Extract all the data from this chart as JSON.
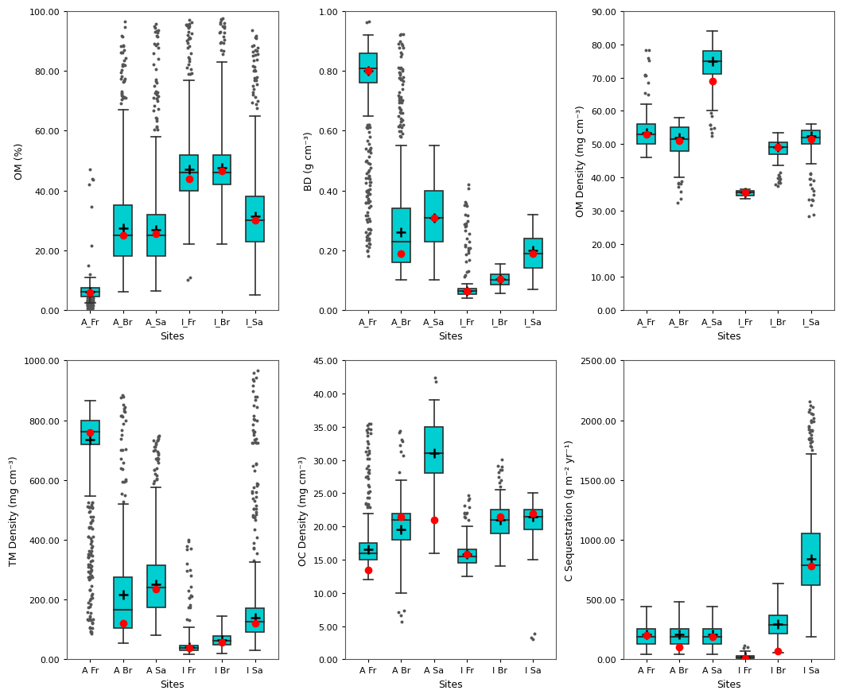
{
  "box_color": "#00CED1",
  "whisker_color": "#2F2F2F",
  "obs_color": "red",
  "outlier_color": "#555555",
  "background_color": "#ffffff",
  "subplots": [
    {
      "ylabel": "OM (%)",
      "xlabel": "Sites",
      "ylim": [
        0,
        100
      ],
      "yticks": [
        0.0,
        20.0,
        40.0,
        60.0,
        80.0,
        100.0
      ],
      "sites": [
        "A_Fr",
        "A_Br",
        "A_Sa",
        "I_Fr",
        "I_Br",
        "I_Sa"
      ],
      "boxes": [
        {
          "q1": 4.5,
          "median": 6.0,
          "q3": 7.5,
          "whislo": 2.5,
          "whishi": 11.0,
          "mean": 6.2,
          "obs": 5.8,
          "n_fliers_lo": 180,
          "flo_min": 0.5,
          "flo_max": 4.4,
          "n_fliers_hi": 8,
          "fhi_min": 12.0,
          "fhi_max": 49.0
        },
        {
          "q1": 18.0,
          "median": 25.0,
          "q3": 35.0,
          "whislo": 6.0,
          "whishi": 67.0,
          "mean": 27.5,
          "obs": 25.0,
          "n_fliers_lo": 0,
          "flo_min": 0,
          "flo_max": 0,
          "n_fliers_hi": 35,
          "fhi_min": 69.0,
          "fhi_max": 97.0
        },
        {
          "q1": 18.0,
          "median": 25.0,
          "q3": 32.0,
          "whislo": 6.5,
          "whishi": 58.0,
          "mean": 27.0,
          "obs": 25.5,
          "n_fliers_lo": 0,
          "flo_min": 0,
          "flo_max": 0,
          "n_fliers_hi": 40,
          "fhi_min": 60.0,
          "fhi_max": 97.0
        },
        {
          "q1": 40.0,
          "median": 46.0,
          "q3": 52.0,
          "whislo": 22.0,
          "whishi": 77.0,
          "mean": 47.0,
          "obs": 44.0,
          "n_fliers_lo": 2,
          "flo_min": 10.0,
          "flo_max": 12.0,
          "n_fliers_hi": 30,
          "fhi_min": 79.0,
          "fhi_max": 97.0
        },
        {
          "q1": 42.0,
          "median": 46.0,
          "q3": 52.0,
          "whislo": 22.0,
          "whishi": 83.0,
          "mean": 47.5,
          "obs": 46.5,
          "n_fliers_lo": 0,
          "flo_min": 0,
          "flo_max": 0,
          "n_fliers_hi": 20,
          "fhi_min": 85.0,
          "fhi_max": 98.0
        },
        {
          "q1": 23.0,
          "median": 30.0,
          "q3": 38.0,
          "whislo": 5.0,
          "whishi": 65.0,
          "mean": 31.5,
          "obs": 30.0,
          "n_fliers_lo": 0,
          "flo_min": 0,
          "flo_max": 0,
          "n_fliers_hi": 35,
          "fhi_min": 67.0,
          "fhi_max": 95.0
        }
      ]
    },
    {
      "ylabel": "BD (g cm⁻³)",
      "xlabel": "Sites",
      "ylim": [
        0,
        1.0
      ],
      "yticks": [
        0.0,
        0.2,
        0.4,
        0.6,
        0.8,
        1.0
      ],
      "sites": [
        "A_Fr",
        "A_Br",
        "A_Sa",
        "I_Fr",
        "I_Br",
        "I_Sa"
      ],
      "boxes": [
        {
          "q1": 0.76,
          "median": 0.81,
          "q3": 0.86,
          "whislo": 0.65,
          "whishi": 0.92,
          "mean": 0.8,
          "obs": 0.8,
          "n_fliers_lo": 80,
          "flo_min": 0.18,
          "flo_max": 0.62,
          "n_fliers_hi": 2,
          "fhi_min": 0.96,
          "fhi_max": 0.99
        },
        {
          "q1": 0.16,
          "median": 0.23,
          "q3": 0.34,
          "whislo": 0.1,
          "whishi": 0.55,
          "mean": 0.26,
          "obs": 0.19,
          "n_fliers_lo": 2,
          "flo_min": 0.19,
          "flo_max": 0.21,
          "n_fliers_hi": 60,
          "fhi_min": 0.57,
          "fhi_max": 0.93
        },
        {
          "q1": 0.23,
          "median": 0.31,
          "q3": 0.4,
          "whislo": 0.1,
          "whishi": 0.55,
          "mean": 0.31,
          "obs": 0.31,
          "n_fliers_lo": 0,
          "flo_min": 0,
          "flo_max": 0,
          "n_fliers_hi": 0,
          "fhi_min": 0,
          "fhi_max": 0
        },
        {
          "q1": 0.054,
          "median": 0.063,
          "q3": 0.072,
          "whislo": 0.04,
          "whishi": 0.088,
          "mean": 0.064,
          "obs": 0.064,
          "n_fliers_lo": 0,
          "flo_min": 0,
          "flo_max": 0,
          "n_fliers_hi": 30,
          "fhi_min": 0.1,
          "fhi_max": 0.43
        },
        {
          "q1": 0.085,
          "median": 0.1,
          "q3": 0.12,
          "whislo": 0.055,
          "whishi": 0.155,
          "mean": 0.105,
          "obs": 0.105,
          "n_fliers_lo": 0,
          "flo_min": 0,
          "flo_max": 0,
          "n_fliers_hi": 0,
          "fhi_min": 0,
          "fhi_max": 0
        },
        {
          "q1": 0.14,
          "median": 0.19,
          "q3": 0.24,
          "whislo": 0.07,
          "whishi": 0.32,
          "mean": 0.2,
          "obs": 0.19,
          "n_fliers_lo": 0,
          "flo_min": 0,
          "flo_max": 0,
          "n_fliers_hi": 0,
          "fhi_min": 0,
          "fhi_max": 0
        }
      ]
    },
    {
      "ylabel": "OM Density (mg cm⁻³)",
      "xlabel": "Sites",
      "ylim": [
        0,
        90
      ],
      "yticks": [
        0.0,
        10.0,
        20.0,
        30.0,
        40.0,
        50.0,
        60.0,
        70.0,
        80.0,
        90.0
      ],
      "sites": [
        "A_Fr",
        "A_Br",
        "A_Sa",
        "I_Fr",
        "I_Br",
        "I_Sa"
      ],
      "boxes": [
        {
          "q1": 50.0,
          "median": 53.0,
          "q3": 56.0,
          "whislo": 46.0,
          "whishi": 62.0,
          "mean": 53.5,
          "obs": 53.0,
          "n_fliers_lo": 0,
          "flo_min": 0,
          "flo_max": 0,
          "n_fliers_hi": 10,
          "fhi_min": 64.0,
          "fhi_max": 81.0
        },
        {
          "q1": 48.0,
          "median": 51.5,
          "q3": 55.0,
          "whislo": 40.0,
          "whishi": 58.0,
          "mean": 52.0,
          "obs": 51.0,
          "n_fliers_lo": 8,
          "flo_min": 31.0,
          "flo_max": 39.0,
          "n_fliers_hi": 0,
          "fhi_min": 0,
          "fhi_max": 0
        },
        {
          "q1": 71.0,
          "median": 75.0,
          "q3": 78.0,
          "whislo": 60.0,
          "whishi": 84.0,
          "mean": 75.0,
          "obs": 69.0,
          "n_fliers_lo": 8,
          "flo_min": 52.0,
          "flo_max": 59.5,
          "n_fliers_hi": 0,
          "fhi_min": 0,
          "fhi_max": 0
        },
        {
          "q1": 34.5,
          "median": 35.5,
          "q3": 36.0,
          "whislo": 33.5,
          "whishi": 36.5,
          "mean": 35.5,
          "obs": 35.5,
          "n_fliers_lo": 0,
          "flo_min": 0,
          "flo_max": 0,
          "n_fliers_hi": 0,
          "fhi_min": 0,
          "fhi_max": 0
        },
        {
          "q1": 47.0,
          "median": 49.0,
          "q3": 50.5,
          "whislo": 43.5,
          "whishi": 53.5,
          "mean": 49.0,
          "obs": 49.0,
          "n_fliers_lo": 12,
          "flo_min": 37.0,
          "flo_max": 43.0,
          "n_fliers_hi": 0,
          "fhi_min": 0,
          "fhi_max": 0
        },
        {
          "q1": 50.0,
          "median": 52.0,
          "q3": 54.0,
          "whislo": 44.0,
          "whishi": 56.0,
          "mean": 52.5,
          "obs": 51.5,
          "n_fliers_lo": 15,
          "flo_min": 28.0,
          "flo_max": 43.0,
          "n_fliers_hi": 0,
          "fhi_min": 0,
          "fhi_max": 0
        }
      ]
    },
    {
      "ylabel": "TM Density (mg cm⁻³)",
      "xlabel": "Sites",
      "ylim": [
        0,
        1000
      ],
      "yticks": [
        0.0,
        200.0,
        400.0,
        600.0,
        800.0,
        1000.0
      ],
      "sites": [
        "A Fr",
        "A Br",
        "A Sa",
        "I Fr",
        "I Br",
        "I Sa"
      ],
      "boxes": [
        {
          "q1": 720.0,
          "median": 762.0,
          "q3": 800.0,
          "whislo": 545.0,
          "whishi": 865.0,
          "mean": 735.0,
          "obs": 760.0,
          "n_fliers_lo": 90,
          "flo_min": 85.0,
          "flo_max": 540.0,
          "n_fliers_hi": 0,
          "fhi_min": 0,
          "fhi_max": 0
        },
        {
          "q1": 105.0,
          "median": 165.0,
          "q3": 275.0,
          "whislo": 55.0,
          "whishi": 520.0,
          "mean": 215.0,
          "obs": 120.0,
          "n_fliers_lo": 0,
          "flo_min": 0,
          "flo_max": 0,
          "n_fliers_hi": 30,
          "fhi_min": 525.0,
          "fhi_max": 900.0
        },
        {
          "q1": 175.0,
          "median": 240.0,
          "q3": 315.0,
          "whislo": 80.0,
          "whishi": 575.0,
          "mean": 250.0,
          "obs": 235.0,
          "n_fliers_lo": 0,
          "flo_min": 0,
          "flo_max": 0,
          "n_fliers_hi": 30,
          "fhi_min": 580.0,
          "fhi_max": 760.0
        },
        {
          "q1": 30.0,
          "median": 38.0,
          "q3": 46.0,
          "whislo": 18.0,
          "whishi": 108.0,
          "mean": 42.0,
          "obs": 37.0,
          "n_fliers_lo": 0,
          "flo_min": 0,
          "flo_max": 0,
          "n_fliers_hi": 20,
          "fhi_min": 115.0,
          "fhi_max": 400.0
        },
        {
          "q1": 48.0,
          "median": 62.0,
          "q3": 78.0,
          "whislo": 20.0,
          "whishi": 145.0,
          "mean": 65.0,
          "obs": 57.0,
          "n_fliers_lo": 0,
          "flo_min": 0,
          "flo_max": 0,
          "n_fliers_hi": 0,
          "fhi_min": 0,
          "fhi_max": 0
        },
        {
          "q1": 90.0,
          "median": 125.0,
          "q3": 170.0,
          "whislo": 30.0,
          "whishi": 325.0,
          "mean": 138.0,
          "obs": 120.0,
          "n_fliers_lo": 0,
          "flo_min": 0,
          "flo_max": 0,
          "n_fliers_hi": 60,
          "fhi_min": 330.0,
          "fhi_max": 970.0
        }
      ]
    },
    {
      "ylabel": "OC Density (mg cm⁻³)",
      "xlabel": "Sites",
      "ylim": [
        0,
        45
      ],
      "yticks": [
        0.0,
        5.0,
        10.0,
        15.0,
        20.0,
        25.0,
        30.0,
        35.0,
        40.0,
        45.0
      ],
      "sites": [
        "A Fr",
        "A Br",
        "A Sa",
        "I Fr",
        "I Br",
        "I Sa"
      ],
      "boxes": [
        {
          "q1": 15.0,
          "median": 16.0,
          "q3": 17.5,
          "whislo": 12.0,
          "whishi": 22.0,
          "mean": 16.5,
          "obs": 13.5,
          "n_fliers_lo": 0,
          "flo_min": 0,
          "flo_max": 0,
          "n_fliers_hi": 40,
          "fhi_min": 22.5,
          "fhi_max": 35.5
        },
        {
          "q1": 18.0,
          "median": 21.0,
          "q3": 22.0,
          "whislo": 10.0,
          "whishi": 27.0,
          "mean": 19.5,
          "obs": 21.5,
          "n_fliers_lo": 4,
          "flo_min": 5.5,
          "flo_max": 7.5,
          "n_fliers_hi": 8,
          "fhi_min": 28.0,
          "fhi_max": 34.5
        },
        {
          "q1": 28.0,
          "median": 31.0,
          "q3": 35.0,
          "whislo": 16.0,
          "whishi": 39.0,
          "mean": 31.0,
          "obs": 21.0,
          "n_fliers_lo": 0,
          "flo_min": 0,
          "flo_max": 0,
          "n_fliers_hi": 2,
          "fhi_min": 41.0,
          "fhi_max": 42.5
        },
        {
          "q1": 14.5,
          "median": 15.5,
          "q3": 16.5,
          "whislo": 12.5,
          "whishi": 20.0,
          "mean": 15.8,
          "obs": 15.8,
          "n_fliers_lo": 0,
          "flo_min": 0,
          "flo_max": 0,
          "n_fliers_hi": 12,
          "fhi_min": 21.0,
          "fhi_max": 25.5
        },
        {
          "q1": 19.0,
          "median": 21.0,
          "q3": 22.5,
          "whislo": 14.0,
          "whishi": 25.5,
          "mean": 21.0,
          "obs": 21.5,
          "n_fliers_lo": 0,
          "flo_min": 0,
          "flo_max": 0,
          "n_fliers_hi": 10,
          "fhi_min": 26.0,
          "fhi_max": 30.5
        },
        {
          "q1": 19.5,
          "median": 21.5,
          "q3": 22.5,
          "whislo": 15.0,
          "whishi": 25.0,
          "mean": 21.5,
          "obs": 22.0,
          "n_fliers_lo": 3,
          "flo_min": 3.0,
          "flo_max": 5.0,
          "n_fliers_hi": 0,
          "fhi_min": 0,
          "fhi_max": 0
        }
      ]
    },
    {
      "ylabel": "C Sequestration (g m⁻² yr⁻¹)",
      "xlabel": "Sites",
      "ylim": [
        0,
        2500
      ],
      "yticks": [
        0.0,
        500.0,
        1000.0,
        1500.0,
        2000.0,
        2500.0
      ],
      "sites": [
        "A Fr",
        "A Br",
        "A Sa",
        "I Fr",
        "I Br",
        "I Sa"
      ],
      "boxes": [
        {
          "q1": 130.0,
          "median": 185.0,
          "q3": 255.0,
          "whislo": 40.0,
          "whishi": 440.0,
          "mean": 210.0,
          "obs": 200.0,
          "n_fliers_lo": 0,
          "flo_min": 0,
          "flo_max": 0,
          "n_fliers_hi": 0,
          "fhi_min": 0,
          "fhi_max": 0
        },
        {
          "q1": 130.0,
          "median": 185.0,
          "q3": 255.0,
          "whislo": 40.0,
          "whishi": 480.0,
          "mean": 205.0,
          "obs": 105.0,
          "n_fliers_lo": 0,
          "flo_min": 0,
          "flo_max": 0,
          "n_fliers_hi": 0,
          "fhi_min": 0,
          "fhi_max": 0
        },
        {
          "q1": 130.0,
          "median": 185.0,
          "q3": 255.0,
          "whislo": 40.0,
          "whishi": 440.0,
          "mean": 205.0,
          "obs": 185.0,
          "n_fliers_lo": 0,
          "flo_min": 0,
          "flo_max": 0,
          "n_fliers_hi": 0,
          "fhi_min": 0,
          "fhi_max": 0
        },
        {
          "q1": 10.0,
          "median": 18.0,
          "q3": 28.0,
          "whislo": 3.0,
          "whishi": 70.0,
          "mean": 22.0,
          "obs": 11.0,
          "n_fliers_lo": 0,
          "flo_min": 0,
          "flo_max": 0,
          "n_fliers_hi": 3,
          "fhi_min": 90.0,
          "fhi_max": 120.0
        },
        {
          "q1": 215.0,
          "median": 290.0,
          "q3": 365.0,
          "whislo": 55.0,
          "whishi": 635.0,
          "mean": 295.0,
          "obs": 70.0,
          "n_fliers_lo": 0,
          "flo_min": 0,
          "flo_max": 0,
          "n_fliers_hi": 0,
          "fhi_min": 0,
          "fhi_max": 0
        },
        {
          "q1": 620.0,
          "median": 790.0,
          "q3": 1050.0,
          "whislo": 185.0,
          "whishi": 1720.0,
          "mean": 840.0,
          "obs": 780.0,
          "n_fliers_lo": 0,
          "flo_min": 0,
          "flo_max": 0,
          "n_fliers_hi": 30,
          "fhi_min": 1750.0,
          "fhi_max": 2200.0
        }
      ]
    }
  ]
}
